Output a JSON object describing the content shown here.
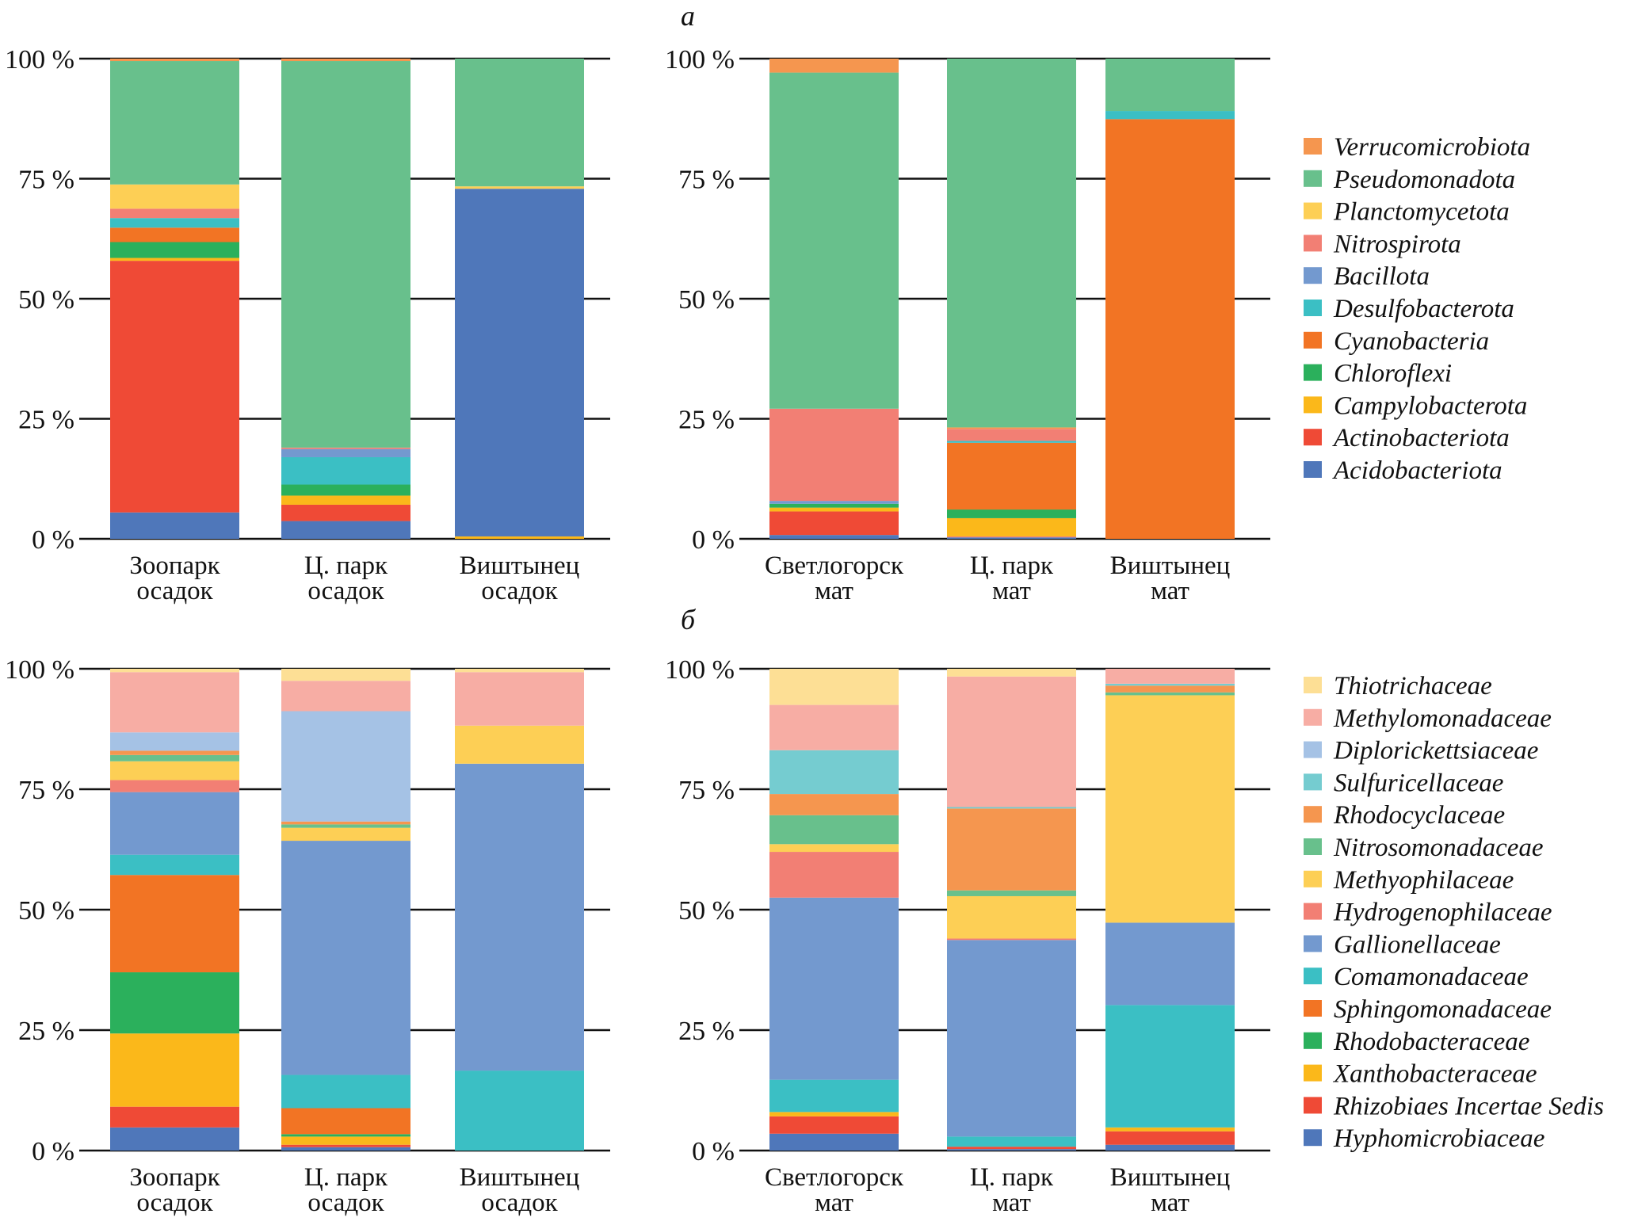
{
  "panel_labels": [
    "а",
    "б"
  ],
  "chart_data": [
    {
      "id": "a-left",
      "panel": "а",
      "type": "bar",
      "stacked": true,
      "ylim": [
        0,
        100
      ],
      "yticks": [
        "0 %",
        "25 %",
        "50 %",
        "75 %",
        "100 %"
      ],
      "ytick_values": [
        0,
        25,
        50,
        75,
        100
      ],
      "grid": true,
      "categories": [
        [
          "Зоопарк",
          "осадок"
        ],
        [
          "Ц. парк",
          "осадок"
        ],
        [
          "Виштынец",
          "осадок"
        ]
      ],
      "legend_ref": "phyla",
      "bars": [
        [
          [
            "Acidobacteriota",
            5.5
          ],
          [
            "Actinobacteriota",
            52.4
          ],
          [
            "Campylobacterota",
            0.6
          ],
          [
            "Chloroflexi",
            3.3
          ],
          [
            "Cyanobacteria",
            3.0
          ],
          [
            "Desulfobacterota",
            2.0
          ],
          [
            "Nitrospirota",
            1.95
          ],
          [
            "Planctomycetota",
            5.05
          ],
          [
            "Pseudomonadota",
            25.7
          ],
          [
            "Verrucomicrobiota",
            0.5
          ]
        ],
        [
          [
            "Acidobacteriota",
            3.7
          ],
          [
            "Actinobacteriota",
            3.4
          ],
          [
            "Campylobacterota",
            1.9
          ],
          [
            "Chloroflexi",
            2.3
          ],
          [
            "Desulfobacterota",
            5.7
          ],
          [
            "Bacillota",
            1.7
          ],
          [
            "Nitrospirota",
            0.3
          ],
          [
            "Pseudomonadota",
            80.5
          ],
          [
            "Verrucomicrobiota",
            0.5
          ]
        ],
        [
          [
            "Campylobacterota",
            0.5
          ],
          [
            "Acidobacteriota",
            72.4
          ],
          [
            "Planctomycetota",
            0.5
          ],
          [
            "Pseudomonadota",
            26.6
          ]
        ]
      ]
    },
    {
      "id": "a-right",
      "panel": "а",
      "type": "bar",
      "stacked": true,
      "ylim": [
        0,
        100
      ],
      "yticks": [
        "0 %",
        "25 %",
        "50 %",
        "75 %",
        "100 %"
      ],
      "ytick_values": [
        0,
        25,
        50,
        75,
        100
      ],
      "grid": true,
      "categories": [
        [
          "Светлогорск",
          "мат"
        ],
        [
          "Ц. парк",
          "мат"
        ],
        [
          "Виштынец",
          "мат"
        ]
      ],
      "legend_ref": "phyla",
      "bars": [
        [
          [
            "Acidobacteriota",
            0.8
          ],
          [
            "Actinobacteriota",
            4.9
          ],
          [
            "Campylobacterota",
            0.8
          ],
          [
            "Chloroflexi",
            0.8
          ],
          [
            "Bacillota",
            0.6
          ],
          [
            "Nitrospirota",
            19.2
          ],
          [
            "Pseudomonadota",
            70.0
          ],
          [
            "Verrucomicrobiota",
            2.9
          ]
        ],
        [
          [
            "Acidobacteriota",
            0.3
          ],
          [
            "Nitrospirota",
            0.2
          ],
          [
            "Campylobacterota",
            3.8
          ],
          [
            "Chloroflexi",
            1.8
          ],
          [
            "Cyanobacteria",
            13.9
          ],
          [
            "Desulfobacterota",
            0.4
          ],
          [
            "Nitrospirota",
            2.5
          ],
          [
            "Verrucomicrobiota",
            0.3
          ],
          [
            "Pseudomonadota",
            76.8
          ]
        ],
        [
          [
            "Cyanobacteria",
            87.4
          ],
          [
            "Desulfobacterota",
            1.7
          ],
          [
            "Pseudomonadota",
            10.9
          ]
        ]
      ]
    },
    {
      "id": "b-left",
      "panel": "б",
      "type": "bar",
      "stacked": true,
      "ylim": [
        0,
        100
      ],
      "yticks": [
        "0 %",
        "25 %",
        "50 %",
        "75 %",
        "100 %"
      ],
      "ytick_values": [
        0,
        25,
        50,
        75,
        100
      ],
      "grid": true,
      "categories": [
        [
          "Зоопарк",
          "осадок"
        ],
        [
          "Ц. парк",
          "осадок"
        ],
        [
          "Виштынец",
          "осадок"
        ]
      ],
      "legend_ref": "families",
      "bars": [
        [
          [
            "Hyphomicrobiaceae",
            4.8
          ],
          [
            "Rhizobiaes Incertae Sedis",
            4.3
          ],
          [
            "Xanthobacteraceae",
            15.2
          ],
          [
            "Rhodobacteraceae",
            12.7
          ],
          [
            "Sphingomonadaceae",
            20.2
          ],
          [
            "Comamonadaceae",
            4.2
          ],
          [
            "Gallionellaceae",
            13.0
          ],
          [
            "Hydrogenophilaceae",
            2.5
          ],
          [
            "Methyophilaceae",
            3.9
          ],
          [
            "Nitrosomonadaceae",
            1.3
          ],
          [
            "Rhodocyclaceae",
            0.9
          ],
          [
            "Diplorickettsiaceae",
            3.8
          ],
          [
            "Methylomonadaceae",
            12.5
          ],
          [
            "Thiotrichaceae",
            0.7
          ]
        ],
        [
          [
            "Hyphomicrobiaceae",
            0.7
          ],
          [
            "Rhizobiaes Incertae Sedis",
            0.5
          ],
          [
            "Xanthobacteraceae",
            1.7
          ],
          [
            "Rhodobacteraceae",
            0.5
          ],
          [
            "Sphingomonadaceae",
            5.4
          ],
          [
            "Comamonadaceae",
            6.9
          ],
          [
            "Gallionellaceae",
            48.6
          ],
          [
            "Methyophilaceae",
            2.7
          ],
          [
            "Nitrosomonadaceae",
            0.7
          ],
          [
            "Rhodocyclaceae",
            0.6
          ],
          [
            "Diplorickettsiaceae",
            22.9
          ],
          [
            "Methylomonadaceae",
            6.3
          ],
          [
            "Thiotrichaceae",
            2.5
          ]
        ],
        [
          [
            "Comamonadaceae",
            16.6
          ],
          [
            "Gallionellaceae",
            63.7
          ],
          [
            "Methyophilaceae",
            7.9
          ],
          [
            "Methylomonadaceae",
            11.1
          ],
          [
            "Thiotrichaceae",
            0.7
          ]
        ]
      ]
    },
    {
      "id": "b-right",
      "panel": "б",
      "type": "bar",
      "stacked": true,
      "ylim": [
        0,
        100
      ],
      "yticks": [
        "0 %",
        "25 %",
        "50 %",
        "75 %",
        "100 %"
      ],
      "ytick_values": [
        0,
        25,
        50,
        75,
        100
      ],
      "grid": true,
      "categories": [
        [
          "Светлогорск",
          "мат"
        ],
        [
          "Ц. парк",
          "мат"
        ],
        [
          "Виштынец",
          "мат"
        ]
      ],
      "legend_ref": "families",
      "bars": [
        [
          [
            "Hyphomicrobiaceae",
            3.5
          ],
          [
            "Rhizobiaes Incertae Sedis",
            3.6
          ],
          [
            "Xanthobacteraceae",
            0.9
          ],
          [
            "Comamonadaceae",
            6.7
          ],
          [
            "Gallionellaceae",
            37.8
          ],
          [
            "Hydrogenophilaceae",
            9.5
          ],
          [
            "Methyophilaceae",
            1.6
          ],
          [
            "Nitrosomonadaceae",
            6.0
          ],
          [
            "Rhodocyclaceae",
            4.4
          ],
          [
            "Sulfuricellaceae",
            9.1
          ],
          [
            "Methylomonadaceae",
            9.4
          ],
          [
            "Thiotrichaceae",
            7.5
          ]
        ],
        [
          [
            "Hyphomicrobiaceae",
            0.3
          ],
          [
            "Rhizobiaes Incertae Sedis",
            0.5
          ],
          [
            "Comamonadaceae",
            2.1
          ],
          [
            "Gallionellaceae",
            40.8
          ],
          [
            "Hydrogenophilaceae",
            0.3
          ],
          [
            "Methyophilaceae",
            8.8
          ],
          [
            "Nitrosomonadaceae",
            1.2
          ],
          [
            "Rhodocyclaceae",
            17.0
          ],
          [
            "Sulfuricellaceae",
            0.3
          ],
          [
            "Methylomonadaceae",
            27.1
          ],
          [
            "Thiotrichaceae",
            1.6
          ]
        ],
        [
          [
            "Hyphomicrobiaceae",
            1.2
          ],
          [
            "Rhizobiaes Incertae Sedis",
            2.8
          ],
          [
            "Xanthobacteraceae",
            0.8
          ],
          [
            "Comamonadaceae",
            25.4
          ],
          [
            "Gallionellaceae",
            17.1
          ],
          [
            "Methyophilaceae",
            47.2
          ],
          [
            "Nitrosomonadaceae",
            0.6
          ],
          [
            "Rhodocyclaceae",
            1.4
          ],
          [
            "Sulfuricellaceae",
            0.4
          ],
          [
            "Methylomonadaceae",
            3.1
          ]
        ]
      ]
    }
  ],
  "legends": {
    "phyla": [
      {
        "name": "Verrucomicrobiota",
        "color": "#F5964F"
      },
      {
        "name": "Pseudomonadota",
        "color": "#68C08C"
      },
      {
        "name": "Planctomycetota",
        "color": "#FDCF55"
      },
      {
        "name": "Nitrospirota",
        "color": "#F27F74"
      },
      {
        "name": "Bacillota",
        "color": "#7399CF"
      },
      {
        "name": "Desulfobacterota",
        "color": "#3BBFC4"
      },
      {
        "name": "Cyanobacteria",
        "color": "#F27424"
      },
      {
        "name": "Chloroflexi",
        "color": "#2BB05C"
      },
      {
        "name": "Campylobacterota",
        "color": "#FBB81A"
      },
      {
        "name": "Actinobacteriota",
        "color": "#EF4A36"
      },
      {
        "name": "Acidobacteriota",
        "color": "#4F77BA"
      }
    ],
    "families": [
      {
        "name": "Thiotrichaceae",
        "color": "#FDDF95"
      },
      {
        "name": "Methylomonadaceae",
        "color": "#F7ADA4"
      },
      {
        "name": "Diplorickettsiaceae",
        "color": "#A5C2E5"
      },
      {
        "name": "Sulfuricellaceae",
        "color": "#75CCD0"
      },
      {
        "name": "Rhodocyclaceae",
        "color": "#F5964F"
      },
      {
        "name": "Nitrosomonadaceae",
        "color": "#68C08C"
      },
      {
        "name": "Methyophilaceae",
        "color": "#FDCF55"
      },
      {
        "name": "Hydrogenophilaceae",
        "color": "#F27F74"
      },
      {
        "name": "Gallionellaceae",
        "color": "#7399CF"
      },
      {
        "name": "Comamonadaceae",
        "color": "#3BBFC4"
      },
      {
        "name": "Sphingomonadaceae",
        "color": "#F27424"
      },
      {
        "name": "Rhodobacteraceae",
        "color": "#2BB05C"
      },
      {
        "name": "Xanthobacteraceae",
        "color": "#FBB81A"
      },
      {
        "name": "Rhizobiaes Incertae Sedis",
        "color": "#EF4A36"
      },
      {
        "name": "Hyphomicrobiaceae",
        "color": "#4F77BA"
      }
    ]
  }
}
